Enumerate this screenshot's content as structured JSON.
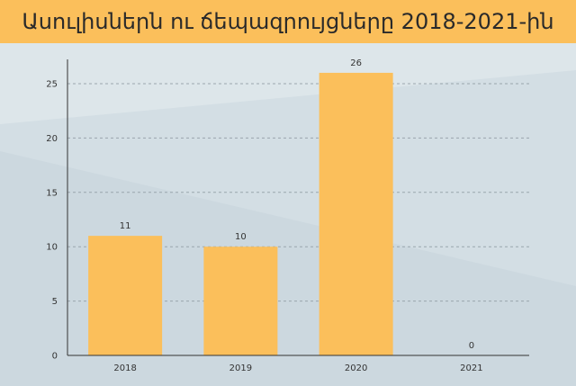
{
  "header": {
    "title": "Ասուլիսներն ու ճեպազրույցները 2018-2021-ին"
  },
  "colors": {
    "title_bar": "#fbbf5b",
    "bar": "#fbbf5b",
    "background": "#d3dee4",
    "axis": "#333333",
    "grid": "#9aa5ad"
  },
  "chart_data": {
    "type": "bar",
    "categories": [
      "2018",
      "2019",
      "2020",
      "2021"
    ],
    "values": [
      11,
      10,
      26,
      0
    ],
    "title": "Ասուլիսներն ու ճեպազրույցները 2018-2021-ին",
    "xlabel": "",
    "ylabel": "",
    "ylim": [
      0,
      27.5
    ],
    "yticks": [
      0,
      5,
      10,
      15,
      20,
      25
    ],
    "grid": true,
    "data_labels": true,
    "legend": "none"
  }
}
